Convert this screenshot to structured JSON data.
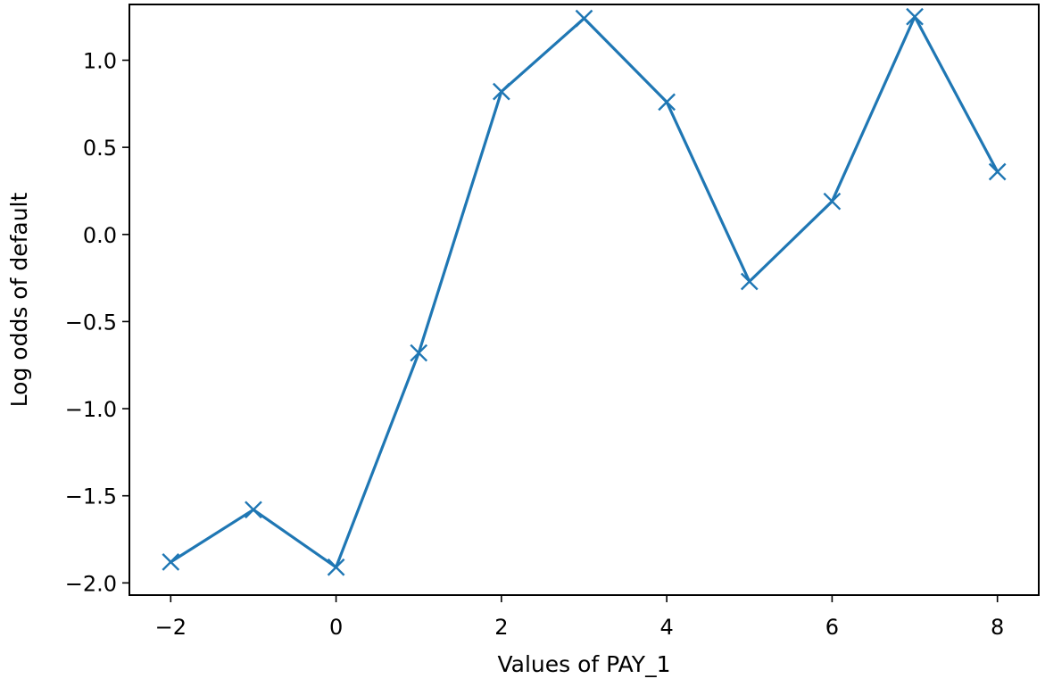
{
  "chart_data": {
    "type": "line",
    "title": "",
    "xlabel": "Values of PAY_1",
    "ylabel": "Log odds of default",
    "x": [
      -2,
      -1,
      0,
      1,
      2,
      3,
      4,
      5,
      6,
      7,
      8
    ],
    "series": [
      {
        "values": [
          -1.88,
          -1.58,
          -1.91,
          -0.68,
          0.82,
          1.24,
          0.76,
          -0.27,
          0.19,
          1.25,
          0.36
        ],
        "color": "#1f77b4",
        "marker": "x"
      }
    ],
    "xticks": [
      -2,
      0,
      2,
      4,
      6,
      8
    ],
    "xtick_labels": [
      "−2",
      "0",
      "2",
      "4",
      "6",
      "8"
    ],
    "yticks": [
      -2.0,
      -1.5,
      -1.0,
      -0.5,
      0.0,
      0.5,
      1.0
    ],
    "ytick_labels": [
      "−2.0",
      "−1.5",
      "−1.0",
      "−0.5",
      "0.0",
      "0.5",
      "1.0"
    ],
    "xlim": [
      -2.5,
      8.5
    ],
    "ylim": [
      -2.07,
      1.32
    ],
    "grid": false,
    "legend": "none"
  }
}
